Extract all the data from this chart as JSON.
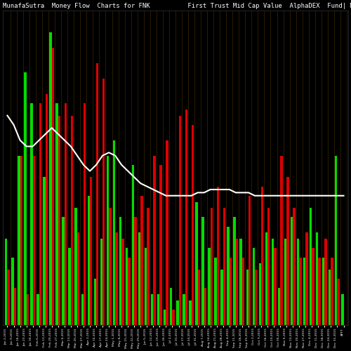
{
  "title": "MunafaSutra  Money Flow  Charts for FNK          First Trust Mid Cap Value  AlphaDEX  Fund| MunafaSutra.com",
  "background_color": "#000000",
  "title_color": "#ffffff",
  "title_fontsize": 6.5,
  "line_color": "#ffffff",
  "xlabel_color": "#ffffff",
  "grid_color": "#3a2800",
  "groups": [
    {
      "green": 0.28,
      "red": 0.18
    },
    {
      "green": 0.22,
      "red": 0.12
    },
    {
      "green": 0.55,
      "red": 0.55
    },
    {
      "green": 0.82,
      "red": 0.1
    },
    {
      "green": 0.72,
      "red": 0.55
    },
    {
      "green": 0.1,
      "red": 0.72
    },
    {
      "green": 0.48,
      "red": 0.75
    },
    {
      "green": 0.95,
      "red": 0.9
    },
    {
      "green": 0.72,
      "red": 0.68
    },
    {
      "green": 0.35,
      "red": 0.72
    },
    {
      "green": 0.25,
      "red": 0.68
    },
    {
      "green": 0.38,
      "red": 0.3
    },
    {
      "green": 0.1,
      "red": 0.72
    },
    {
      "green": 0.42,
      "red": 0.48
    },
    {
      "green": 0.15,
      "red": 0.85
    },
    {
      "green": 0.28,
      "red": 0.8
    },
    {
      "green": 0.55,
      "red": 0.38
    },
    {
      "green": 0.6,
      "red": 0.3
    },
    {
      "green": 0.35,
      "red": 0.28
    },
    {
      "green": 0.25,
      "red": 0.22
    },
    {
      "green": 0.52,
      "red": 0.35
    },
    {
      "green": 0.3,
      "red": 0.42
    },
    {
      "green": 0.25,
      "red": 0.38
    },
    {
      "green": 0.1,
      "red": 0.55
    },
    {
      "green": 0.1,
      "red": 0.52
    },
    {
      "green": 0.05,
      "red": 0.6
    },
    {
      "green": 0.12,
      "red": 0.05
    },
    {
      "green": 0.08,
      "red": 0.68
    },
    {
      "green": 0.1,
      "red": 0.7
    },
    {
      "green": 0.08,
      "red": 0.65
    },
    {
      "green": 0.4,
      "red": 0.18
    },
    {
      "green": 0.35,
      "red": 0.12
    },
    {
      "green": 0.25,
      "red": 0.38
    },
    {
      "green": 0.22,
      "red": 0.45
    },
    {
      "green": 0.18,
      "red": 0.38
    },
    {
      "green": 0.32,
      "red": 0.22
    },
    {
      "green": 0.35,
      "red": 0.28
    },
    {
      "green": 0.28,
      "red": 0.22
    },
    {
      "green": 0.18,
      "red": 0.42
    },
    {
      "green": 0.25,
      "red": 0.18
    },
    {
      "green": 0.2,
      "red": 0.45
    },
    {
      "green": 0.3,
      "red": 0.38
    },
    {
      "green": 0.28,
      "red": 0.25
    },
    {
      "green": 0.12,
      "red": 0.55
    },
    {
      "green": 0.28,
      "red": 0.48
    },
    {
      "green": 0.35,
      "red": 0.38
    },
    {
      "green": 0.28,
      "red": 0.22
    },
    {
      "green": 0.22,
      "red": 0.3
    },
    {
      "green": 0.38,
      "red": 0.25
    },
    {
      "green": 0.3,
      "red": 0.22
    },
    {
      "green": 0.22,
      "red": 0.28
    },
    {
      "green": 0.18,
      "red": 0.22
    },
    {
      "green": 0.55,
      "red": 0.15
    },
    {
      "green": 0.1,
      "red": 0.0
    }
  ],
  "line_values": [
    0.68,
    0.65,
    0.6,
    0.58,
    0.58,
    0.6,
    0.62,
    0.64,
    0.62,
    0.6,
    0.58,
    0.55,
    0.52,
    0.5,
    0.52,
    0.55,
    0.56,
    0.55,
    0.52,
    0.5,
    0.48,
    0.46,
    0.45,
    0.44,
    0.43,
    0.42,
    0.42,
    0.42,
    0.42,
    0.42,
    0.43,
    0.43,
    0.44,
    0.44,
    0.44,
    0.44,
    0.43,
    0.43,
    0.43,
    0.42,
    0.42,
    0.42,
    0.42,
    0.42,
    0.42,
    0.42,
    0.42,
    0.42,
    0.42,
    0.42,
    0.42,
    0.42,
    0.42,
    0.42
  ],
  "labels": [
    "Jan 2,2015",
    "Jan 9,2015",
    "Jan 16,2015",
    "Jan 23,2015",
    "Jan 30,2015",
    "Feb 6,2015",
    "Feb 13,2015",
    "Feb 20,2015",
    "Feb 27,2015",
    "Mar 6,2015",
    "Mar 13,2015",
    "Mar 20,2015",
    "Mar 27,2015",
    "Apr 2,2015",
    "Apr 10,2015",
    "Apr 17,2015",
    "Apr 24,2015",
    "May 1,2015",
    "May 8,2015",
    "May 15,2015",
    "May 22,2015",
    "May 29,2015",
    "Jun 5,2015",
    "Jun 12,2015",
    "Jun 19,2015",
    "Jun 26,2015",
    "Jul 2,2015",
    "Jul 10,2015",
    "Jul 17,2015",
    "Jul 24,2015",
    "Jul 31,2015",
    "Aug 7,2015",
    "Aug 14,2015",
    "Aug 21,2015",
    "Aug 28,2015",
    "Sep 4,2015",
    "Sep 11,2015",
    "Sep 18,2015",
    "Sep 25,2015",
    "Oct 2,2015",
    "Oct 9,2015",
    "Oct 16,2015",
    "Oct 23,2015",
    "Oct 30,2015",
    "Nov 6,2015",
    "Nov 13,2015",
    "Nov 20,2015",
    "Nov 27,2015",
    "Dec 4,2015",
    "Dec 11,2015",
    "Dec 18,2015",
    "Dec 24,2015",
    "Dec 31,2015",
    "APFT"
  ]
}
